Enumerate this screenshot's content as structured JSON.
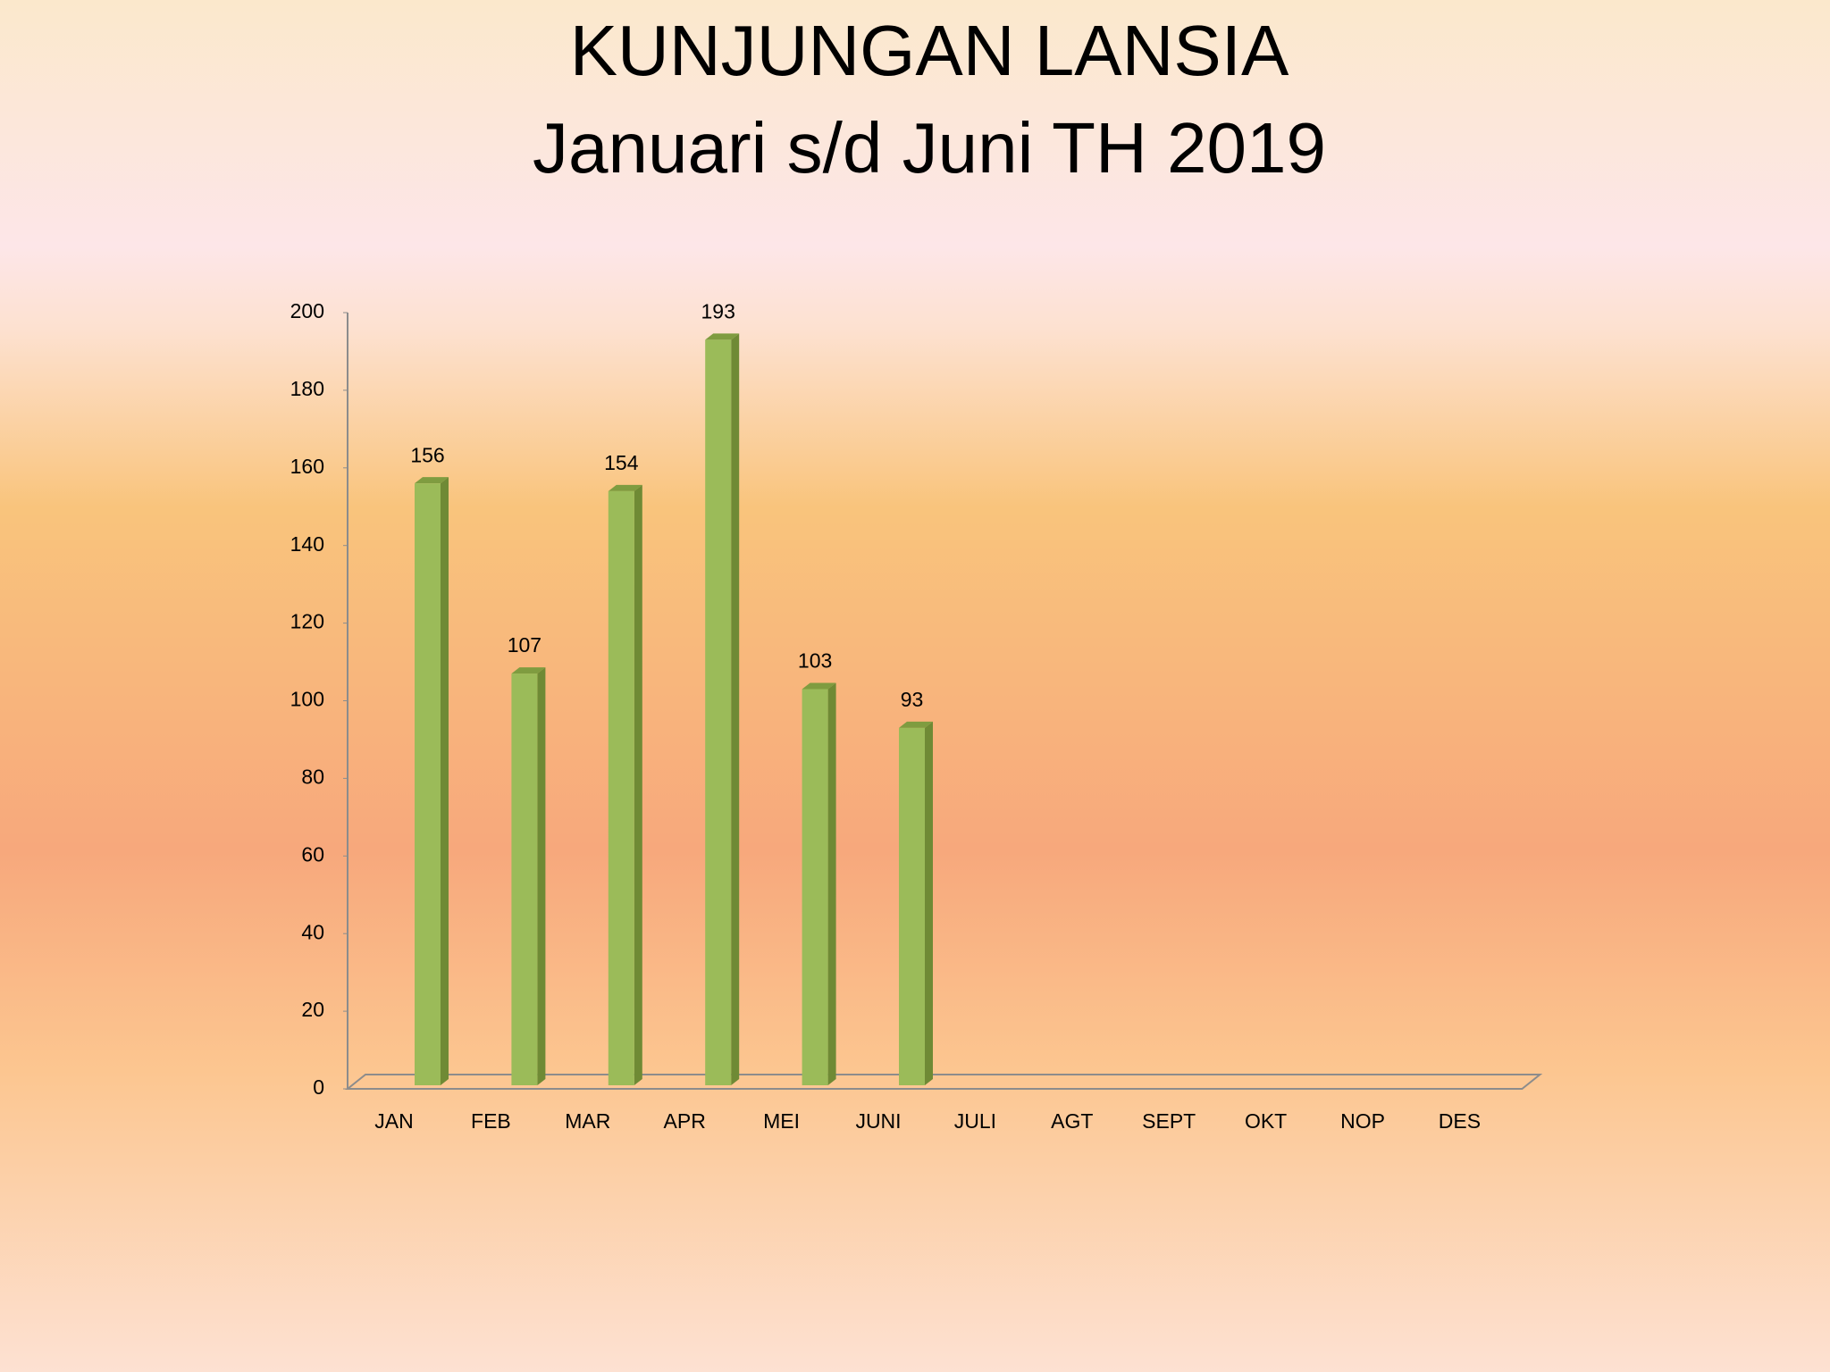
{
  "chart_data": {
    "type": "bar3d",
    "title": "KUNJUNGAN LANSIA",
    "subtitle": "Januari s/d Juni TH 2019",
    "categories": [
      "JAN",
      "FEB",
      "MAR",
      "APR",
      "MEI",
      "JUNI",
      "JULI",
      "AGT",
      "SEPT",
      "OKT",
      "NOP",
      "DES"
    ],
    "values": [
      156,
      107,
      154,
      193,
      103,
      93,
      null,
      null,
      null,
      null,
      null,
      null
    ],
    "color": "#9bbb59",
    "ylim": [
      0,
      200
    ],
    "yticks": [
      0,
      20,
      40,
      60,
      80,
      100,
      120,
      140,
      160,
      180,
      200
    ],
    "grid": false
  }
}
